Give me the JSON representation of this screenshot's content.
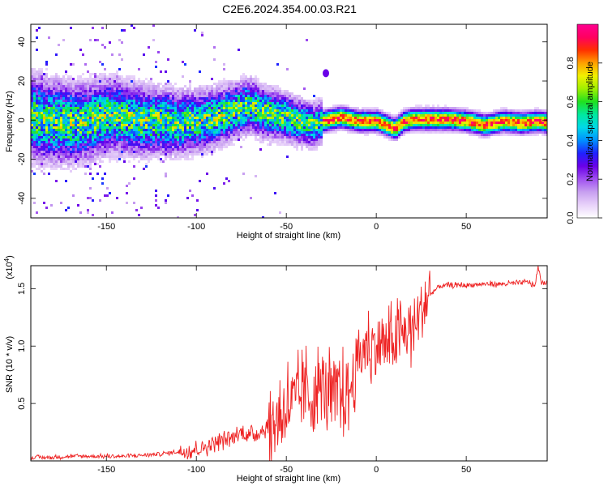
{
  "title": "C2E6.2024.354.00.03.R21",
  "chart_data": [
    {
      "type": "heatmap",
      "title": "",
      "xlabel": "Height of straight line (km)",
      "ylabel": "Frequency (Hz)",
      "xlim": [
        -192,
        95
      ],
      "ylim": [
        -50,
        49
      ],
      "xticks": [
        -150,
        -100,
        -50,
        0,
        50
      ],
      "yticks": [
        -40,
        -20,
        0,
        20,
        40
      ],
      "colorbar": {
        "label": "Normalized spectral amplitude",
        "range": [
          0,
          1
        ],
        "ticks": [
          "0.0",
          "0.2",
          "0.4",
          "0.6",
          "0.8"
        ],
        "tick_values": [
          0.0,
          0.2,
          0.4,
          0.6,
          0.8
        ],
        "colors": [
          "#ffffff",
          "#e8d2fa",
          "#c8a0f0",
          "#a050f0",
          "#6a00e8",
          "#2020ff",
          "#0090ff",
          "#00d8e8",
          "#00e8a0",
          "#20e020",
          "#a0f000",
          "#f0f000",
          "#ffa000",
          "#ff3000",
          "#ff0060",
          "#ff0090"
        ]
      },
      "ridge": {
        "x": [
          -192,
          -180,
          -170,
          -160,
          -150,
          -140,
          -130,
          -120,
          -110,
          -100,
          -90,
          -80,
          -75,
          -70,
          -65,
          -60,
          -55,
          -50,
          -45,
          -40,
          -35,
          -30,
          -25,
          -20,
          -15,
          -10,
          -5,
          0,
          5,
          10,
          15,
          20,
          30,
          40,
          50,
          60,
          70,
          80,
          90,
          95
        ],
        "y": [
          2,
          0,
          -1,
          0,
          3,
          2,
          0,
          0,
          -1,
          0,
          2,
          5,
          7,
          8,
          5,
          4,
          3,
          2,
          0,
          -1,
          -2,
          0,
          1,
          2,
          1,
          0,
          0,
          0,
          -2,
          -4,
          0,
          1,
          1,
          1,
          0,
          -2,
          0,
          -1,
          0,
          -1
        ]
      }
    },
    {
      "type": "line",
      "title": "",
      "xlabel": "Height of straight line (km)",
      "ylabel": "SNR (10 * v/v)",
      "y_multiplier": "(x10",
      "y_multiplier_exp": "4",
      "y_multiplier_close": ")",
      "xlim": [
        -192,
        95
      ],
      "ylim": [
        0,
        1.7
      ],
      "xticks": [
        -150,
        -100,
        -50,
        0,
        50
      ],
      "yticks": [
        0.5,
        1.0,
        1.5
      ],
      "ytick_labels": [
        "0.5",
        "1.0",
        "1.5"
      ],
      "series": [
        {
          "color": "#ee2222",
          "x": [
            -192,
            -180,
            -170,
            -160,
            -150,
            -140,
            -130,
            -120,
            -110,
            -100,
            -95,
            -90,
            -85,
            -80,
            -75,
            -70,
            -65,
            -60,
            -55,
            -50,
            -45,
            -40,
            -35,
            -30,
            -25,
            -20,
            -15,
            -10,
            -5,
            0,
            5,
            10,
            15,
            20,
            25,
            30,
            35,
            40,
            50,
            60,
            70,
            80,
            85,
            88,
            90,
            92,
            95
          ],
          "y": [
            0.03,
            0.03,
            0.04,
            0.04,
            0.04,
            0.04,
            0.05,
            0.06,
            0.08,
            0.1,
            0.12,
            0.16,
            0.18,
            0.2,
            0.25,
            0.22,
            0.25,
            0.3,
            0.35,
            0.5,
            0.5,
            0.6,
            0.55,
            0.65,
            0.55,
            0.55,
            0.6,
            0.9,
            1.0,
            1.0,
            1.0,
            1.05,
            1.1,
            1.15,
            1.3,
            1.45,
            1.52,
            1.53,
            1.53,
            1.54,
            1.54,
            1.55,
            1.56,
            1.52,
            1.68,
            1.55,
            1.55
          ]
        }
      ]
    }
  ]
}
